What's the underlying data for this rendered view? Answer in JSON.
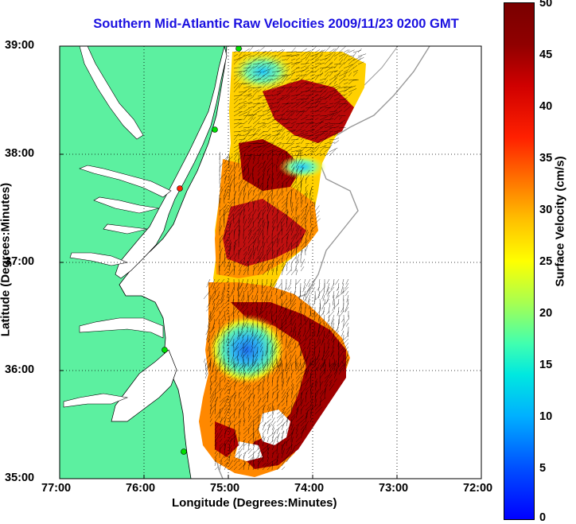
{
  "title": "Southern Mid-Atlantic Raw Velocities 2009/11/23 0200 GMT",
  "axes": {
    "xlabel": "Longitude (Degrees:Minutes)",
    "ylabel": "Latitude (Degrees:Minutes)",
    "xticks": [
      "77:00",
      "76:00",
      "75:00",
      "74:00",
      "73:00",
      "72:00"
    ],
    "yticks": [
      "39:00",
      "38:00",
      "37:00",
      "36:00",
      "35:00"
    ],
    "xlim": [
      -77,
      -72
    ],
    "ylim": [
      35,
      39
    ],
    "grid": "dotted"
  },
  "colorbar": {
    "label": "Surface Velocity (cm/s)",
    "ticks": [
      "50",
      "45",
      "40",
      "35",
      "30",
      "25",
      "20",
      "15",
      "10",
      "5",
      "0"
    ],
    "range": [
      0,
      50
    ]
  },
  "colors": {
    "land": "#5cf0a0",
    "title": "#1a10e0",
    "coast": "#000000",
    "isobath": "#999999",
    "station": "#00e000"
  }
}
